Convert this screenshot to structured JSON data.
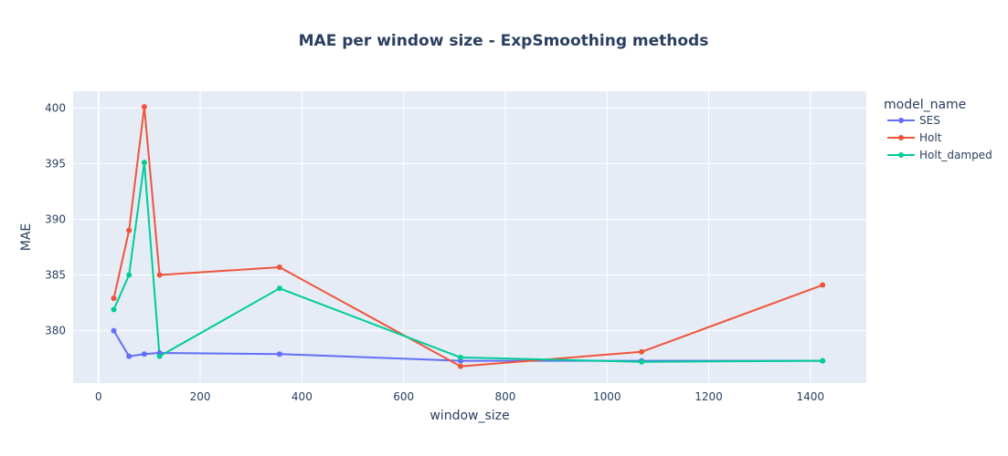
{
  "chart_data": {
    "type": "line",
    "title": "MAE per window size - ExpSmoothing methods",
    "xlabel": "window_size",
    "ylabel": "MAE",
    "xlim": [
      -50,
      1510
    ],
    "ylim": [
      375.3,
      401.5
    ],
    "xticks": [
      0,
      200,
      400,
      600,
      800,
      1000,
      1200,
      1400
    ],
    "yticks": [
      380,
      385,
      390,
      395,
      400
    ],
    "grid": true,
    "legend": {
      "title": "model_name",
      "placement": "top-right"
    },
    "series": [
      {
        "name": "SES",
        "color": "#636efa",
        "x": [
          30,
          60,
          90,
          120,
          356,
          712,
          1068,
          1424
        ],
        "y": [
          380.0,
          377.7,
          377.9,
          378.0,
          377.9,
          377.3,
          377.3,
          377.3
        ]
      },
      {
        "name": "Holt",
        "color": "#ef553b",
        "x": [
          30,
          60,
          90,
          120,
          356,
          712,
          1068,
          1424
        ],
        "y": [
          382.9,
          389.0,
          400.1,
          385.0,
          385.7,
          376.8,
          378.1,
          384.1
        ]
      },
      {
        "name": "Holt_damped",
        "color": "#00cc96",
        "x": [
          30,
          60,
          90,
          120,
          356,
          712,
          1068,
          1424
        ],
        "y": [
          381.9,
          385.0,
          395.1,
          377.7,
          383.8,
          377.6,
          377.2,
          377.3
        ]
      }
    ]
  }
}
